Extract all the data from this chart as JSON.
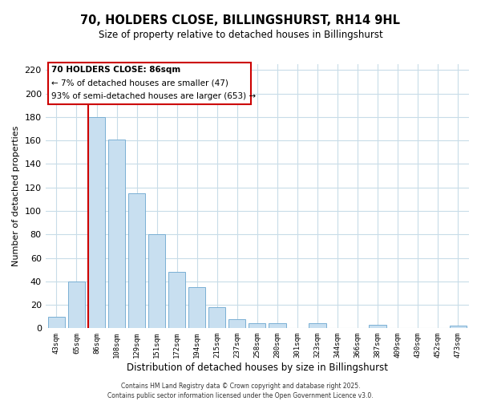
{
  "title": "70, HOLDERS CLOSE, BILLINGSHURST, RH14 9HL",
  "subtitle": "Size of property relative to detached houses in Billingshurst",
  "xlabel": "Distribution of detached houses by size in Billingshurst",
  "ylabel": "Number of detached properties",
  "bar_labels": [
    "43sqm",
    "65sqm",
    "86sqm",
    "108sqm",
    "129sqm",
    "151sqm",
    "172sqm",
    "194sqm",
    "215sqm",
    "237sqm",
    "258sqm",
    "280sqm",
    "301sqm",
    "323sqm",
    "344sqm",
    "366sqm",
    "387sqm",
    "409sqm",
    "430sqm",
    "452sqm",
    "473sqm"
  ],
  "bar_values": [
    10,
    40,
    180,
    161,
    115,
    80,
    48,
    35,
    18,
    8,
    4,
    4,
    0,
    4,
    0,
    0,
    3,
    0,
    0,
    0,
    2
  ],
  "bar_color_fill": "#c8dff0",
  "bar_color_edge": "#7ab0d4",
  "highlight_color": "#cc0000",
  "highlight_bar_index": 2,
  "ylim": [
    0,
    225
  ],
  "yticks": [
    0,
    20,
    40,
    60,
    80,
    100,
    120,
    140,
    160,
    180,
    200,
    220
  ],
  "annotation_title": "70 HOLDERS CLOSE: 86sqm",
  "annotation_line1": "← 7% of detached houses are smaller (47)",
  "annotation_line2": "93% of semi-detached houses are larger (653) →",
  "footer1": "Contains HM Land Registry data © Crown copyright and database right 2025.",
  "footer2": "Contains public sector information licensed under the Open Government Licence v3.0.",
  "bg_color": "#ffffff",
  "grid_color": "#c8dce8"
}
